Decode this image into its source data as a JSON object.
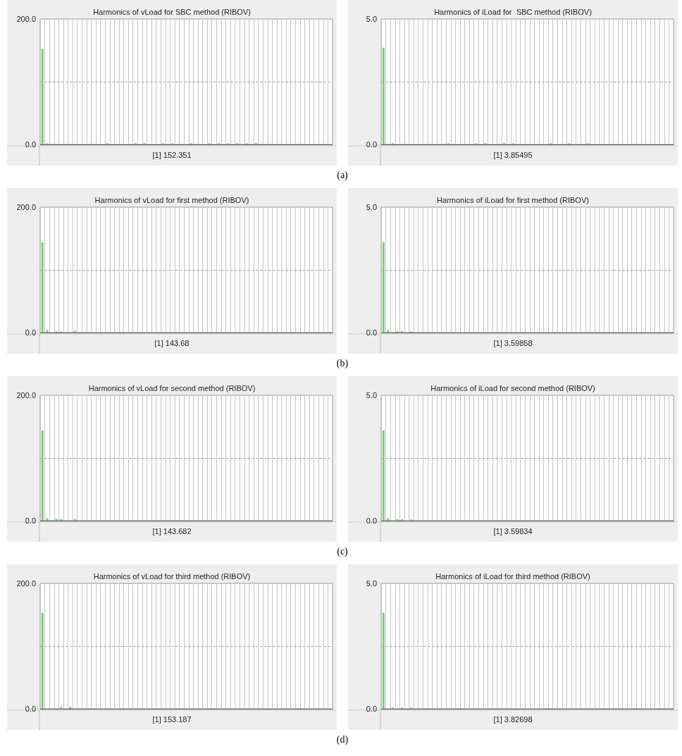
{
  "chart_data": [
    {
      "type": "bar",
      "title": "Harmonics of vLoad for SBC method (RIBOV)",
      "color": "#80c880",
      "ylim": [
        0,
        200
      ],
      "yticks": [
        {
          "value": 0,
          "label": "0.0"
        },
        {
          "value": 200,
          "label": "200.0"
        }
      ],
      "grid": "x",
      "ref_lines": [
        {
          "axis": "y",
          "value": 100,
          "color": "#aaaaaa",
          "line_style": "dashed"
        }
      ],
      "annotations": [
        "[1] 152.351",
        "(a)"
      ],
      "categories": [
        null,
        null,
        null,
        null,
        null,
        null,
        null,
        null,
        null,
        null,
        null,
        null,
        null,
        null,
        null,
        null,
        null,
        null,
        null,
        null,
        null,
        null,
        null,
        null,
        null,
        null,
        null,
        null,
        null,
        null,
        null,
        null,
        null,
        null,
        null,
        null,
        null,
        null,
        null,
        null,
        null,
        null,
        null,
        null,
        null,
        null,
        null,
        null,
        null,
        null,
        null,
        null,
        null,
        null,
        null,
        null,
        null,
        null,
        null,
        null,
        null,
        null,
        null
      ],
      "values": [
        152.351,
        2,
        0,
        0,
        0,
        0,
        0,
        0,
        0,
        0,
        0,
        0,
        0,
        0,
        2,
        0,
        0,
        0,
        0,
        0,
        2,
        0,
        2,
        0,
        0,
        0,
        2,
        0,
        2,
        0,
        0,
        0,
        2,
        0,
        0,
        0,
        2,
        0,
        2,
        0,
        2,
        0,
        2,
        0,
        2,
        0,
        2,
        0,
        0,
        0,
        0,
        0,
        0,
        0,
        0,
        0,
        0,
        0,
        0,
        0,
        0,
        0,
        0
      ]
    },
    {
      "type": "bar",
      "title": "Harmonics of iLoad for  SBC method (RIBOV)",
      "color": "#80c880",
      "ylim": [
        0,
        5
      ],
      "yticks": [
        {
          "value": 0,
          "label": "0.0"
        },
        {
          "value": 5,
          "label": "5.0"
        }
      ],
      "grid": "x",
      "ref_lines": [
        {
          "axis": "y",
          "value": 2.5,
          "color": "#aaaaaa",
          "line_style": "dashed"
        }
      ],
      "annotations": [
        "[1] 3.85495"
      ],
      "categories": [
        null,
        null,
        null,
        null,
        null,
        null,
        null,
        null,
        null,
        null,
        null,
        null,
        null,
        null,
        null,
        null,
        null,
        null,
        null,
        null,
        null,
        null,
        null,
        null,
        null,
        null,
        null,
        null,
        null,
        null,
        null,
        null,
        null,
        null,
        null,
        null,
        null,
        null,
        null,
        null,
        null,
        null,
        null,
        null,
        null,
        null,
        null,
        null,
        null,
        null,
        null,
        null,
        null,
        null,
        null,
        null,
        null,
        null,
        null,
        null,
        null,
        null,
        null
      ],
      "values": [
        3.85495,
        0,
        0.05,
        0,
        0,
        0,
        0,
        0,
        0,
        0,
        0,
        0,
        0,
        0,
        0.05,
        0,
        0,
        0,
        0,
        0,
        0.05,
        0,
        0.05,
        0,
        0,
        0,
        0.05,
        0,
        0.05,
        0,
        0,
        0,
        0,
        0,
        0,
        0,
        0.05,
        0,
        0,
        0,
        0.05,
        0,
        0,
        0,
        0.05,
        0,
        0,
        0,
        0,
        0,
        0,
        0,
        0,
        0,
        0,
        0,
        0,
        0,
        0,
        0,
        0,
        0,
        0
      ]
    },
    {
      "type": "bar",
      "title": "Harmonics of vLoad for first method (RIBOV)",
      "color": "#80c880",
      "ylim": [
        0,
        200
      ],
      "yticks": [
        {
          "value": 0,
          "label": "0.0"
        },
        {
          "value": 200,
          "label": "200.0"
        }
      ],
      "grid": "x",
      "ref_lines": [
        {
          "axis": "y",
          "value": 100,
          "color": "#aaaaaa",
          "line_style": "dashed"
        }
      ],
      "annotations": [
        "[1] 143.68",
        "(b)"
      ],
      "categories": [
        null,
        null,
        null,
        null,
        null,
        null,
        null,
        null,
        null,
        null,
        null,
        null,
        null,
        null,
        null,
        null,
        null,
        null,
        null,
        null,
        null,
        null,
        null,
        null,
        null,
        null,
        null,
        null,
        null,
        null,
        null,
        null,
        null,
        null,
        null,
        null,
        null,
        null,
        null,
        null,
        null,
        null,
        null,
        null,
        null,
        null,
        null,
        null,
        null,
        null,
        null,
        null,
        null,
        null,
        null,
        null,
        null,
        null,
        null,
        null,
        null,
        null,
        null
      ],
      "values": [
        143.68,
        4,
        0,
        2,
        2,
        0,
        0,
        3,
        0,
        0,
        0,
        0,
        0,
        0,
        0,
        0,
        0,
        0,
        0,
        0,
        0,
        0,
        0,
        0,
        0,
        0,
        0,
        0,
        0,
        0,
        0,
        0,
        0,
        0,
        0,
        0,
        0,
        0,
        0,
        0,
        0,
        0,
        0,
        0,
        0,
        0,
        0,
        0,
        0,
        0,
        0,
        0,
        0,
        0,
        0,
        0,
        0,
        0,
        0,
        0,
        0,
        0,
        0
      ]
    },
    {
      "type": "bar",
      "title": "Harmonics of iLoad for first method (RIBOV)",
      "color": "#80c880",
      "ylim": [
        0,
        5
      ],
      "yticks": [
        {
          "value": 0,
          "label": "0.0"
        },
        {
          "value": 5,
          "label": "5.0"
        }
      ],
      "grid": "x",
      "ref_lines": [
        {
          "axis": "y",
          "value": 2.5,
          "color": "#aaaaaa",
          "line_style": "dashed"
        }
      ],
      "annotations": [
        "[1] 3.59858"
      ],
      "categories": [
        null,
        null,
        null,
        null,
        null,
        null,
        null,
        null,
        null,
        null,
        null,
        null,
        null,
        null,
        null,
        null,
        null,
        null,
        null,
        null,
        null,
        null,
        null,
        null,
        null,
        null,
        null,
        null,
        null,
        null,
        null,
        null,
        null,
        null,
        null,
        null,
        null,
        null,
        null,
        null,
        null,
        null,
        null,
        null,
        null,
        null,
        null,
        null,
        null,
        null,
        null,
        null,
        null,
        null,
        null,
        null,
        null,
        null,
        null,
        null,
        null,
        null,
        null
      ],
      "values": [
        3.59858,
        0.1,
        0,
        0.06,
        0.06,
        0,
        0.05,
        0,
        0,
        0,
        0,
        0,
        0,
        0,
        0,
        0,
        0,
        0,
        0,
        0,
        0,
        0,
        0,
        0,
        0,
        0,
        0,
        0,
        0,
        0,
        0,
        0,
        0,
        0,
        0,
        0,
        0,
        0,
        0,
        0,
        0,
        0,
        0,
        0,
        0,
        0,
        0,
        0,
        0,
        0,
        0,
        0,
        0,
        0,
        0,
        0,
        0,
        0,
        0,
        0,
        0,
        0,
        0
      ]
    },
    {
      "type": "bar",
      "title": "Harmonics of vLoad for second method (RIBOV)",
      "color": "#80c880",
      "ylim": [
        0,
        200
      ],
      "yticks": [
        {
          "value": 0,
          "label": "0.0"
        },
        {
          "value": 200,
          "label": "200.0"
        }
      ],
      "grid": "x",
      "ref_lines": [
        {
          "axis": "y",
          "value": 100,
          "color": "#aaaaaa",
          "line_style": "dashed"
        }
      ],
      "annotations": [
        "[1] 143.682",
        "(c)"
      ],
      "categories": [
        null,
        null,
        null,
        null,
        null,
        null,
        null,
        null,
        null,
        null,
        null,
        null,
        null,
        null,
        null,
        null,
        null,
        null,
        null,
        null,
        null,
        null,
        null,
        null,
        null,
        null,
        null,
        null,
        null,
        null,
        null,
        null,
        null,
        null,
        null,
        null,
        null,
        null,
        null,
        null,
        null,
        null,
        null,
        null,
        null,
        null,
        null,
        null,
        null,
        null,
        null,
        null,
        null,
        null,
        null,
        null,
        null,
        null,
        null,
        null,
        null,
        null,
        null
      ],
      "values": [
        143.682,
        4,
        0,
        3,
        3,
        0,
        0,
        3,
        0,
        0,
        0,
        0,
        0,
        0,
        0,
        0,
        0,
        0,
        0,
        0,
        0,
        0,
        0,
        0,
        0,
        0,
        0,
        0,
        0,
        0,
        0,
        0,
        0,
        0,
        0,
        0,
        0,
        0,
        0,
        0,
        0,
        0,
        0,
        0,
        0,
        0,
        0,
        0,
        0,
        0,
        0,
        0,
        0,
        0,
        0,
        0,
        0,
        0,
        0,
        0,
        0,
        0,
        0
      ]
    },
    {
      "type": "bar",
      "title": "Harmonics of iLoad for second method (RIBOV)",
      "color": "#80c880",
      "ylim": [
        0,
        5
      ],
      "yticks": [
        {
          "value": 0,
          "label": "0.0"
        },
        {
          "value": 5,
          "label": "5.0"
        }
      ],
      "grid": "x",
      "ref_lines": [
        {
          "axis": "y",
          "value": 2.5,
          "color": "#aaaaaa",
          "line_style": "dashed"
        }
      ],
      "annotations": [
        "[1] 3.59834"
      ],
      "categories": [
        null,
        null,
        null,
        null,
        null,
        null,
        null,
        null,
        null,
        null,
        null,
        null,
        null,
        null,
        null,
        null,
        null,
        null,
        null,
        null,
        null,
        null,
        null,
        null,
        null,
        null,
        null,
        null,
        null,
        null,
        null,
        null,
        null,
        null,
        null,
        null,
        null,
        null,
        null,
        null,
        null,
        null,
        null,
        null,
        null,
        null,
        null,
        null,
        null,
        null,
        null,
        null,
        null,
        null,
        null,
        null,
        null,
        null,
        null,
        null,
        null,
        null,
        null
      ],
      "values": [
        3.59834,
        0.1,
        0,
        0.06,
        0.06,
        0,
        0.05,
        0,
        0,
        0,
        0,
        0,
        0,
        0,
        0,
        0,
        0,
        0,
        0,
        0,
        0,
        0,
        0,
        0,
        0,
        0,
        0,
        0,
        0,
        0,
        0,
        0,
        0,
        0,
        0,
        0,
        0,
        0,
        0,
        0,
        0,
        0,
        0,
        0,
        0,
        0,
        0,
        0,
        0,
        0,
        0,
        0,
        0,
        0,
        0,
        0,
        0,
        0,
        0,
        0,
        0,
        0,
        0
      ]
    },
    {
      "type": "bar",
      "title": "Harmonics of vLoad for third method (RIBOV)",
      "color": "#80c880",
      "ylim": [
        0,
        200
      ],
      "yticks": [
        {
          "value": 0,
          "label": "0.0"
        },
        {
          "value": 200,
          "label": "200.0"
        }
      ],
      "grid": "x",
      "ref_lines": [
        {
          "axis": "y",
          "value": 100,
          "color": "#aaaaaa",
          "line_style": "dashed"
        }
      ],
      "annotations": [
        "[1] 153.187",
        "(d)"
      ],
      "categories": [
        null,
        null,
        null,
        null,
        null,
        null,
        null,
        null,
        null,
        null,
        null,
        null,
        null,
        null,
        null,
        null,
        null,
        null,
        null,
        null,
        null,
        null,
        null,
        null,
        null,
        null,
        null,
        null,
        null,
        null,
        null,
        null,
        null,
        null,
        null,
        null,
        null,
        null,
        null,
        null,
        null,
        null,
        null,
        null,
        null,
        null,
        null,
        null,
        null,
        null,
        null,
        null,
        null,
        null,
        null,
        null,
        null,
        null,
        null,
        null,
        null,
        null,
        null
      ],
      "values": [
        153.187,
        0,
        0,
        0,
        3,
        0,
        3,
        0,
        0,
        0,
        0,
        0,
        0,
        0,
        0,
        0,
        0,
        0,
        0,
        0,
        0,
        0,
        0,
        0,
        0,
        0,
        0,
        0,
        0,
        0,
        0,
        0,
        0,
        0,
        0,
        0,
        0,
        0,
        0,
        0,
        0,
        0,
        0,
        0,
        0,
        0,
        0,
        0,
        0,
        0,
        0,
        0,
        0,
        0,
        0,
        0,
        0,
        0,
        0,
        0,
        0,
        0,
        0
      ]
    },
    {
      "type": "bar",
      "title": "Harmonics of iLoad for third method (RIBOV)",
      "color": "#80c880",
      "ylim": [
        0,
        5
      ],
      "yticks": [
        {
          "value": 0,
          "label": "0.0"
        },
        {
          "value": 5,
          "label": "5.0"
        }
      ],
      "grid": "x",
      "ref_lines": [
        {
          "axis": "y",
          "value": 2.5,
          "color": "#aaaaaa",
          "line_style": "dashed"
        }
      ],
      "annotations": [
        "[1] 3.82698"
      ],
      "categories": [
        null,
        null,
        null,
        null,
        null,
        null,
        null,
        null,
        null,
        null,
        null,
        null,
        null,
        null,
        null,
        null,
        null,
        null,
        null,
        null,
        null,
        null,
        null,
        null,
        null,
        null,
        null,
        null,
        null,
        null,
        null,
        null,
        null,
        null,
        null,
        null,
        null,
        null,
        null,
        null,
        null,
        null,
        null,
        null,
        null,
        null,
        null,
        null,
        null,
        null,
        null,
        null,
        null,
        null,
        null,
        null,
        null,
        null,
        null,
        null,
        null,
        null,
        null
      ],
      "values": [
        3.82698,
        0,
        0.05,
        0,
        0.05,
        0,
        0.05,
        0,
        0,
        0,
        0,
        0,
        0,
        0,
        0,
        0,
        0,
        0,
        0,
        0,
        0,
        0,
        0,
        0,
        0,
        0,
        0,
        0,
        0,
        0,
        0,
        0,
        0,
        0,
        0,
        0,
        0,
        0,
        0,
        0,
        0,
        0,
        0,
        0,
        0,
        0,
        0,
        0,
        0,
        0,
        0,
        0,
        0,
        0,
        0,
        0,
        0,
        0,
        0,
        0,
        0,
        0,
        0
      ]
    }
  ]
}
